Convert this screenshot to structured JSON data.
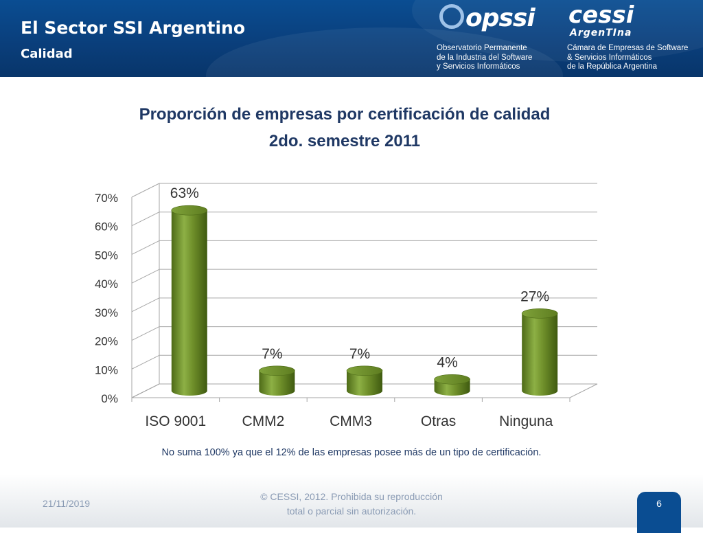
{
  "header": {
    "title": "El Sector SSI Argentino",
    "subtitle": "Calidad",
    "logo_opssi": {
      "name": "opssi",
      "lines": [
        "Observatorio Permanente",
        "de la Industria del Software",
        "y Servicios Informáticos"
      ]
    },
    "logo_cessi": {
      "name": "cessi",
      "tagline": "ArgenTIna",
      "lines": [
        "Cámara de Empresas de Software",
        "& Servicios Informáticos",
        "de la República Argentina"
      ]
    }
  },
  "chart_data": {
    "type": "bar",
    "title": "Proporción de empresas por certificación de calidad",
    "subtitle": "2do. semestre 2011",
    "categories": [
      "ISO 9001",
      "CMM2",
      "CMM3",
      "Otras",
      "Ninguna"
    ],
    "values": [
      63,
      7,
      7,
      4,
      27
    ],
    "data_labels": [
      "63%",
      "7%",
      "7%",
      "4%",
      "27%"
    ],
    "y_ticks": [
      "0%",
      "10%",
      "20%",
      "30%",
      "40%",
      "50%",
      "60%",
      "70%"
    ],
    "ylim": [
      0,
      70
    ],
    "xlabel": "",
    "ylabel": "",
    "grid": true,
    "legend": "none",
    "style": "3d-cylinder",
    "bar_color": "#6f8f2a"
  },
  "footnote": "No suma 100% ya que el 12% de las empresas posee más de un tipo de certificación.",
  "footer": {
    "date": "21/11/2019",
    "copyright_line1": "© CESSI, 2012. Prohibida su reproducción",
    "copyright_line2": "total o parcial sin autorización.",
    "page_number": "6"
  }
}
